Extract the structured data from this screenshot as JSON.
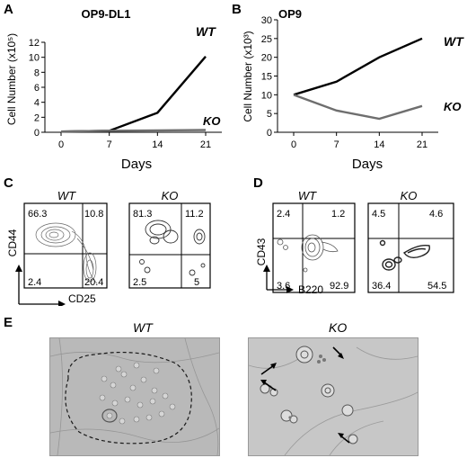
{
  "panels": {
    "A": {
      "letter": "A",
      "title": "OP9-DL1",
      "ylabel": "Cell Number (x10⁵)",
      "xlabel": "Days",
      "label_wt": "WT",
      "label_ko": "KO"
    },
    "B": {
      "letter": "B",
      "title": "OP9",
      "ylabel": "Cell Number (x10³)",
      "xlabel": "Days",
      "label_wt": "WT",
      "label_ko": "KO"
    },
    "C": {
      "letter": "C",
      "label_wt": "WT",
      "label_ko": "KO",
      "yaxis": "CD44",
      "xaxis": "CD25",
      "wt_quadrants": {
        "ul": "66.3",
        "ur": "10.8",
        "ll": "2.4",
        "lr": "20.4"
      },
      "ko_quadrants": {
        "ul": "81.3",
        "ur": "11.2",
        "ll": "2.5",
        "lr": "5"
      }
    },
    "D": {
      "letter": "D",
      "label_wt": "WT",
      "label_ko": "KO",
      "yaxis": "CD43",
      "xaxis": "B220",
      "wt_quadrants": {
        "ul": "2.4",
        "ur": "1.2",
        "ll": "3.6",
        "lr": "92.9"
      },
      "ko_quadrants": {
        "ul": "4.5",
        "ur": "4.6",
        "ll": "36.4",
        "lr": "54.5"
      }
    },
    "E": {
      "letter": "E",
      "label_wt": "WT",
      "label_ko": "KO"
    }
  },
  "chart_data": [
    {
      "type": "line",
      "x": [
        0,
        7,
        14,
        21
      ],
      "xticks": [
        "0",
        "7",
        "14",
        "21"
      ],
      "yticks": [
        "0",
        "2",
        "4",
        "6",
        "8",
        "10",
        "12"
      ],
      "ylim": [
        0,
        12
      ],
      "series": [
        {
          "name": "WT",
          "color": "#000000",
          "values": [
            0.1,
            0.2,
            2.6,
            10.1
          ]
        },
        {
          "name": "KO",
          "color": "#6e6e6e",
          "values": [
            0.1,
            0.2,
            0.25,
            0.3
          ]
        }
      ]
    },
    {
      "type": "line",
      "x": [
        0,
        7,
        14,
        21
      ],
      "xticks": [
        "0",
        "7",
        "14",
        "21"
      ],
      "yticks": [
        "0",
        "5",
        "10",
        "15",
        "20",
        "25",
        "30"
      ],
      "ylim": [
        0,
        30
      ],
      "series": [
        {
          "name": "WT",
          "color": "#000000",
          "values": [
            10,
            13.5,
            20,
            25
          ]
        },
        {
          "name": "KO",
          "color": "#6e6e6e",
          "values": [
            10,
            5.8,
            3.6,
            7
          ]
        }
      ]
    }
  ]
}
